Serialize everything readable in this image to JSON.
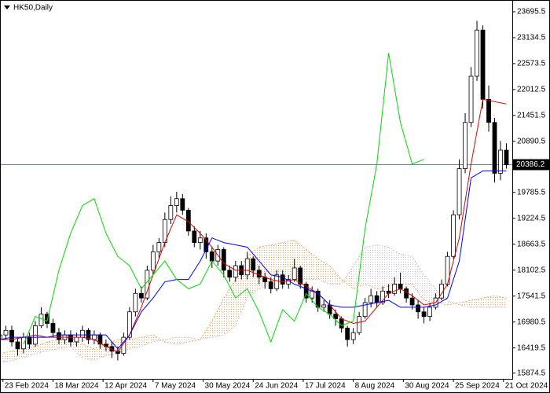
{
  "chart_data": {
    "type": "candlestick",
    "title": "HK50,Daily",
    "x": [
      0,
      2,
      4,
      6,
      8,
      10,
      12,
      14,
      16,
      18,
      20,
      22,
      24,
      26,
      28,
      30,
      32,
      34,
      36,
      38,
      40,
      42,
      44,
      46,
      48,
      50,
      52,
      54,
      56,
      58,
      60,
      62,
      64,
      66,
      68,
      70,
      72,
      74,
      76,
      78,
      80,
      82,
      84,
      86,
      88,
      90,
      92,
      94,
      96,
      98,
      100,
      102,
      104,
      106,
      108,
      110,
      112,
      114,
      116,
      118,
      120,
      122,
      124,
      126,
      128,
      130,
      132,
      134,
      136,
      138,
      140,
      142,
      144,
      146,
      148,
      150,
      152,
      154,
      156,
      158,
      160,
      162,
      164,
      166,
      168,
      170,
      172
    ],
    "open": [
      16600,
      16700,
      16800,
      16550,
      16400,
      16650,
      16500,
      16900,
      17150,
      16950,
      16750,
      16600,
      16700,
      16550,
      16650,
      16800,
      16600,
      16700,
      16500,
      16450,
      16350,
      16300,
      16650,
      17200,
      17600,
      17500,
      18100,
      18500,
      18700,
      19200,
      19500,
      19650,
      19400,
      18950,
      18700,
      18800,
      18500,
      18300,
      18550,
      18100,
      17950,
      18200,
      18000,
      18350,
      18100,
      17950,
      17850,
      17700,
      18000,
      17800,
      17900,
      18150,
      17800,
      17500,
      17650,
      17300,
      17350,
      17150,
      17050,
      16850,
      16600,
      16750,
      17100,
      17400,
      17550,
      17400,
      17650,
      17600,
      17800,
      17700,
      17500,
      17350,
      17200,
      17100,
      17300,
      17500,
      17800,
      18400,
      19300,
      20300,
      21300,
      22300,
      23300,
      21800,
      21300,
      20200,
      20700
    ],
    "high": [
      16800,
      16900,
      16900,
      16650,
      16750,
      16750,
      17000,
      17300,
      17200,
      17050,
      16850,
      16800,
      16800,
      16750,
      16900,
      16850,
      16800,
      16750,
      16600,
      16550,
      16450,
      16750,
      17300,
      17700,
      17750,
      18200,
      18650,
      18800,
      19350,
      19700,
      19800,
      19750,
      19450,
      19050,
      18950,
      18900,
      18600,
      18650,
      18600,
      18200,
      18300,
      18300,
      18500,
      18400,
      18200,
      18050,
      17950,
      18100,
      18100,
      18000,
      18350,
      18200,
      17850,
      17750,
      17700,
      17450,
      17450,
      17250,
      17100,
      16900,
      16850,
      17200,
      17500,
      17700,
      17650,
      17750,
      17800,
      17950,
      18050,
      17750,
      17600,
      17450,
      17300,
      17400,
      17600,
      17900,
      18500,
      19400,
      20500,
      21500,
      22500,
      23500,
      23400,
      22100,
      21400,
      20900,
      20850
    ],
    "low": [
      16450,
      16600,
      16450,
      16250,
      16300,
      16400,
      16450,
      16850,
      16850,
      16650,
      16500,
      16500,
      16450,
      16450,
      16550,
      16500,
      16500,
      16400,
      16350,
      16200,
      16150,
      16250,
      16600,
      17100,
      17400,
      17450,
      18000,
      18350,
      18600,
      19100,
      19350,
      19300,
      18850,
      18600,
      18550,
      18350,
      18150,
      18200,
      17950,
      17850,
      17850,
      17900,
      17900,
      17950,
      17800,
      17700,
      17600,
      17650,
      17700,
      17700,
      17850,
      17700,
      17400,
      17400,
      17200,
      17200,
      17050,
      16900,
      16750,
      16450,
      16500,
      16700,
      17050,
      17300,
      17300,
      17350,
      17500,
      17550,
      17600,
      17400,
      17250,
      17050,
      16950,
      17000,
      17250,
      17450,
      17750,
      18350,
      19200,
      20200,
      21200,
      22200,
      21600,
      21100,
      20000,
      20050,
      20300
    ],
    "close": [
      16700,
      16800,
      16550,
      16400,
      16650,
      16500,
      16900,
      17150,
      16950,
      16750,
      16600,
      16700,
      16550,
      16650,
      16800,
      16600,
      16700,
      16500,
      16450,
      16350,
      16300,
      16650,
      17200,
      17600,
      17500,
      18100,
      18500,
      18700,
      19200,
      19500,
      19650,
      19400,
      18950,
      18700,
      18800,
      18500,
      18300,
      18550,
      18100,
      17950,
      18200,
      18000,
      18350,
      18100,
      17950,
      17850,
      17700,
      18000,
      17800,
      17900,
      18150,
      17800,
      17500,
      17650,
      17300,
      17350,
      17150,
      17050,
      16850,
      16600,
      16750,
      17100,
      17400,
      17550,
      17400,
      17650,
      17600,
      17800,
      17700,
      17500,
      17350,
      17200,
      17100,
      17300,
      17500,
      17800,
      18400,
      19300,
      20300,
      21300,
      22300,
      23300,
      21800,
      21300,
      20200,
      20700,
      20386.2
    ],
    "cloud": {
      "x": [
        0,
        4,
        8,
        12,
        16,
        20,
        24,
        28,
        32,
        36,
        40,
        44,
        48,
        52,
        56,
        60,
        64,
        68,
        72,
        76,
        80,
        84,
        88,
        92,
        96,
        100,
        104,
        108,
        112,
        116,
        120,
        124,
        128,
        132,
        136,
        140,
        144,
        148,
        152,
        156,
        160,
        164,
        168,
        172
      ],
      "span_a": [
        16300,
        16350,
        16400,
        16450,
        16550,
        16600,
        16650,
        16500,
        16400,
        16500,
        16600,
        16600,
        16650,
        16700,
        16550,
        16500,
        16550,
        16600,
        17000,
        17500,
        17900,
        18400,
        18600,
        18650,
        18700,
        18750,
        18550,
        18350,
        18200,
        17900,
        17700,
        17800,
        17700,
        17750,
        17800,
        17800,
        17450,
        17400,
        17350,
        17400,
        17450,
        17500,
        17550,
        17500
      ],
      "span_b": [
        16100,
        16150,
        16200,
        16300,
        16350,
        16400,
        16450,
        16200,
        16150,
        16250,
        16300,
        16400,
        16450,
        16550,
        16600,
        16650,
        16650,
        16600,
        16650,
        16700,
        16900,
        17500,
        17700,
        17800,
        17850,
        17900,
        17900,
        17900,
        17800,
        17800,
        18200,
        18600,
        18650,
        18600,
        18450,
        18400,
        18000,
        17700,
        17450,
        17350,
        17300,
        17300,
        17300,
        17300
      ],
      "up_color": "#f4a460",
      "down_color": "#d8bfd8"
    },
    "lines": [
      {
        "color": "#e00000",
        "x": [
          0,
          4,
          8,
          12,
          16,
          20,
          24,
          28,
          32,
          36,
          40,
          44,
          48,
          52,
          56,
          60,
          64,
          68,
          72,
          76,
          80,
          84,
          88,
          92,
          96,
          100,
          104,
          108,
          112,
          116,
          120,
          124,
          128,
          132,
          136,
          140,
          144,
          148,
          152,
          156,
          160,
          164,
          168,
          172
        ],
        "values": [
          16600,
          16600,
          16650,
          16700,
          16650,
          16650,
          16650,
          16650,
          16600,
          16450,
          16330,
          16700,
          17300,
          18000,
          18700,
          19300,
          19150,
          18900,
          18600,
          18250,
          18100,
          18100,
          18000,
          17900,
          17850,
          17900,
          17750,
          17600,
          17350,
          17050,
          16950,
          17000,
          17300,
          17600,
          17700,
          17550,
          17350,
          17400,
          17800,
          18800,
          20400,
          21800,
          21750,
          21700
        ]
      },
      {
        "color": "#0000ff",
        "x": [
          0,
          4,
          8,
          12,
          16,
          20,
          24,
          28,
          32,
          36,
          40,
          44,
          48,
          52,
          56,
          60,
          64,
          68,
          72,
          76,
          80,
          84,
          88,
          92,
          96,
          100,
          104,
          108,
          112,
          116,
          120,
          124,
          128,
          132,
          136,
          140,
          144,
          148,
          152,
          156,
          160,
          164,
          168,
          172
        ],
        "values": [
          16600,
          16650,
          16650,
          16650,
          16650,
          16700,
          16700,
          16700,
          16700,
          16700,
          16400,
          16700,
          17200,
          17500,
          17850,
          17900,
          17900,
          18300,
          18800,
          18700,
          18650,
          18600,
          18300,
          18000,
          17950,
          17800,
          17700,
          17600,
          17350,
          17300,
          17300,
          17350,
          17400,
          17450,
          17300,
          17300,
          17300,
          17350,
          17500,
          18300,
          20100,
          20250,
          20250,
          20250
        ]
      },
      {
        "color": "#00dd00",
        "x": [
          8,
          12,
          16,
          20,
          24,
          28,
          32,
          36,
          40,
          44,
          48,
          52,
          56,
          60,
          64,
          68,
          72,
          76,
          80,
          84,
          88,
          92,
          96,
          100,
          104,
          108,
          112,
          116,
          120,
          124,
          128,
          132,
          136,
          140,
          144
        ],
        "values": [
          16500,
          17100,
          17000,
          18100,
          18900,
          19500,
          19650,
          18900,
          18400,
          18200,
          17700,
          18000,
          18300,
          17900,
          17700,
          17800,
          18300,
          18000,
          17500,
          17700,
          17200,
          16550,
          17250,
          17000,
          17600,
          17300,
          17150,
          16900,
          17000,
          19000,
          20400,
          22800,
          21300,
          20400,
          20500
        ]
      }
    ],
    "current_price": 20386.2,
    "current_price_color": "#708090",
    "xlim": [
      0,
      174
    ],
    "xticks": [
      {
        "value": 1,
        "label": "23 Feb 2024"
      },
      {
        "value": 18,
        "label": "18 Mar 2024"
      },
      {
        "value": 35,
        "label": "12 Apr 2024"
      },
      {
        "value": 52,
        "label": "7 May 2024"
      },
      {
        "value": 69,
        "label": "30 May 2024"
      },
      {
        "value": 86,
        "label": "24 Jun 2024"
      },
      {
        "value": 103,
        "label": "17 Jul 2024"
      },
      {
        "value": 120,
        "label": "8 Aug 2024"
      },
      {
        "value": 137,
        "label": "30 Aug 2024"
      },
      {
        "value": 154,
        "label": "25 Sep 2024"
      },
      {
        "value": 171,
        "label": "21 Oct 2024"
      }
    ],
    "ylim": [
      15750,
      23950
    ],
    "yticks": [
      23695.5,
      23134.5,
      22573.5,
      22012.5,
      21451.5,
      20890.5,
      19785.5,
      19224.5,
      18663.5,
      18102.5,
      17541.5,
      16980.5,
      16419.5,
      15874.5
    ]
  }
}
